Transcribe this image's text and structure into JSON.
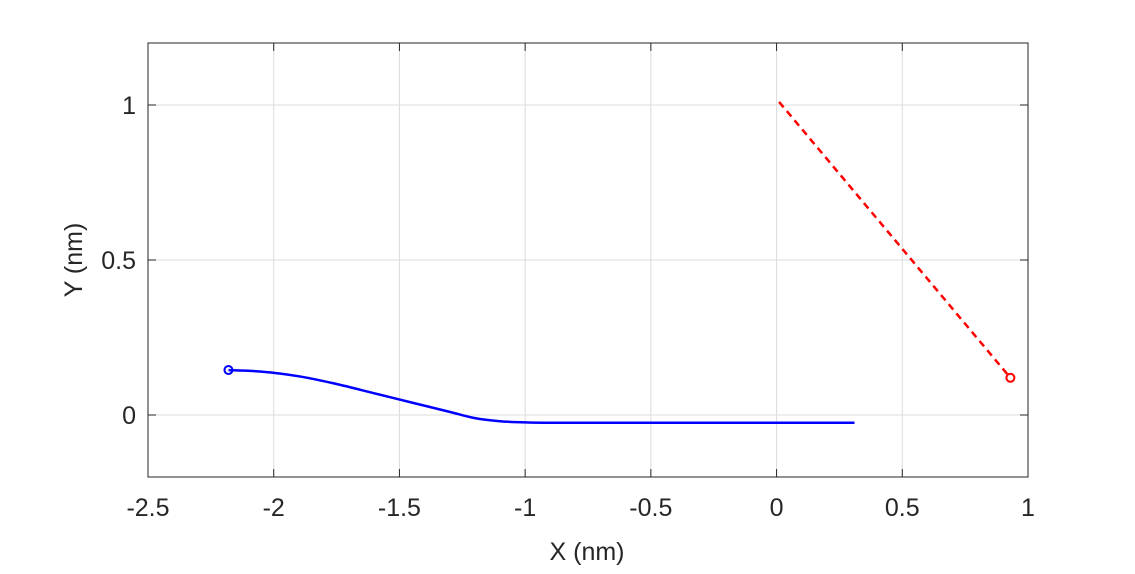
{
  "chart_data": {
    "type": "line",
    "xlabel": "X (nm)",
    "ylabel": "Y (nm)",
    "xlim": [
      -2.5,
      1
    ],
    "ylim": [
      -0.2,
      1.2
    ],
    "xticks": [
      -2.5,
      -2,
      -1.5,
      -1,
      -0.5,
      0,
      0.5,
      1
    ],
    "xtick_labels": [
      "-2.5",
      "-2",
      "-1.5",
      "-1",
      "-0.5",
      "0",
      "0.5",
      "1"
    ],
    "yticks": [
      0,
      0.5,
      1
    ],
    "ytick_labels": [
      "0",
      "0.5",
      "1"
    ],
    "grid": true,
    "colors": {
      "axes": "#262626",
      "grid": "#dcdcdc"
    },
    "series": [
      {
        "color": "#0000ff",
        "line_style": "solid",
        "marker": "start-circle",
        "x": [
          -2.18,
          -2.05,
          -1.9,
          -1.75,
          -1.6,
          -1.45,
          -1.3,
          -1.2,
          -1.1,
          -1.0,
          -0.9,
          -0.8,
          -0.5,
          0.0,
          0.31
        ],
        "y": [
          0.145,
          0.14,
          0.125,
          0.1,
          0.07,
          0.04,
          0.01,
          -0.01,
          -0.02,
          -0.024,
          -0.025,
          -0.025,
          -0.025,
          -0.025,
          -0.025
        ]
      },
      {
        "color": "#ff0000",
        "line_style": "dashed",
        "marker": "end-circle",
        "x": [
          0.01,
          0.93
        ],
        "y": [
          1.01,
          0.12
        ]
      }
    ]
  }
}
